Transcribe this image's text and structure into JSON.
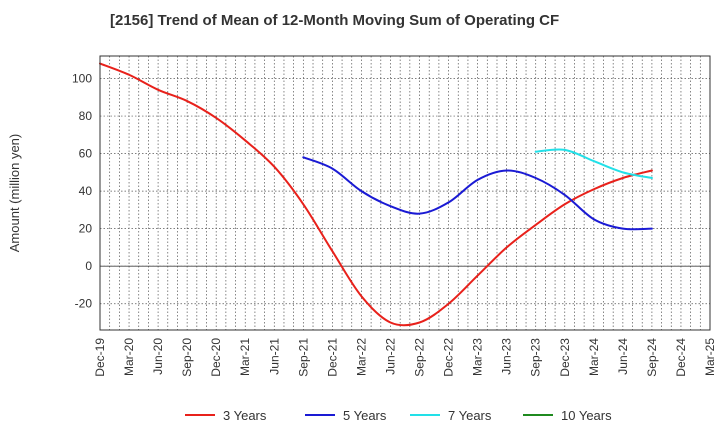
{
  "chart_data": {
    "type": "line",
    "title": "[2156]  Trend of Mean of 12-Month Moving Sum of Operating CF",
    "xlabel": "",
    "ylabel": "Amount (million yen)",
    "ylim": [
      -34,
      112
    ],
    "yticks": [
      100,
      80,
      60,
      40,
      20,
      0,
      -20
    ],
    "grid": true,
    "legend_position": "bottom",
    "categories": [
      "Dec-19",
      "Mar-20",
      "Jun-20",
      "Sep-20",
      "Dec-20",
      "Mar-21",
      "Jun-21",
      "Sep-21",
      "Dec-21",
      "Mar-22",
      "Jun-22",
      "Sep-22",
      "Dec-22",
      "Mar-23",
      "Jun-23",
      "Sep-23",
      "Dec-23",
      "Mar-24",
      "Jun-24",
      "Sep-24",
      "Dec-24",
      "Mar-25"
    ],
    "series": [
      {
        "name": "3 Years",
        "color": "#e8211b",
        "values": [
          108,
          102,
          94,
          88,
          79,
          67,
          53,
          33,
          8,
          -16,
          -30,
          -30,
          -20,
          -5,
          10,
          22,
          33,
          41,
          47,
          51,
          null,
          null
        ]
      },
      {
        "name": "5 Years",
        "color": "#1a1ad4",
        "values": [
          null,
          null,
          null,
          null,
          null,
          null,
          null,
          58,
          52,
          40,
          32,
          28,
          34,
          46,
          51,
          47,
          38,
          25,
          20,
          20,
          null,
          null
        ]
      },
      {
        "name": "7 Years",
        "color": "#22e0e8",
        "values": [
          null,
          null,
          null,
          null,
          null,
          null,
          null,
          null,
          null,
          null,
          null,
          null,
          null,
          null,
          null,
          61,
          62,
          56,
          50,
          47,
          null,
          null
        ]
      },
      {
        "name": "10 Years",
        "color": "#1f8a1f",
        "values": [
          null,
          null,
          null,
          null,
          null,
          null,
          null,
          null,
          null,
          null,
          null,
          null,
          null,
          null,
          null,
          null,
          null,
          null,
          null,
          null,
          null,
          null
        ]
      }
    ]
  }
}
